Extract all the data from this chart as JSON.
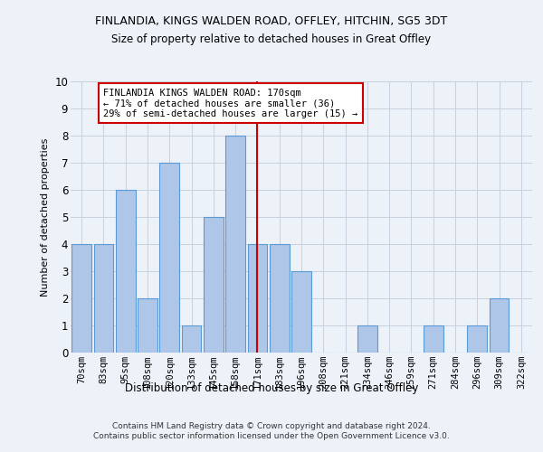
{
  "title1": "FINLANDIA, KINGS WALDEN ROAD, OFFLEY, HITCHIN, SG5 3DT",
  "title2": "Size of property relative to detached houses in Great Offley",
  "xlabel": "Distribution of detached houses by size in Great Offley",
  "ylabel": "Number of detached properties",
  "categories": [
    "70sqm",
    "83sqm",
    "95sqm",
    "108sqm",
    "120sqm",
    "133sqm",
    "145sqm",
    "158sqm",
    "171sqm",
    "183sqm",
    "196sqm",
    "208sqm",
    "221sqm",
    "234sqm",
    "246sqm",
    "259sqm",
    "271sqm",
    "284sqm",
    "296sqm",
    "309sqm",
    "322sqm"
  ],
  "values": [
    4,
    4,
    6,
    2,
    7,
    1,
    5,
    8,
    4,
    4,
    3,
    0,
    0,
    1,
    0,
    0,
    1,
    0,
    1,
    2,
    0
  ],
  "bar_color": "#aec6e8",
  "bar_edge_color": "#5b9bd5",
  "highlight_index": 8,
  "highlight_line_color": "#cc0000",
  "annotation_line1": "FINLANDIA KINGS WALDEN ROAD: 170sqm",
  "annotation_line2": "← 71% of detached houses are smaller (36)",
  "annotation_line3": "29% of semi-detached houses are larger (15) →",
  "annotation_box_color": "#ffffff",
  "annotation_box_edge": "#cc0000",
  "ylim": [
    0,
    10
  ],
  "yticks": [
    0,
    1,
    2,
    3,
    4,
    5,
    6,
    7,
    8,
    9,
    10
  ],
  "footer": "Contains HM Land Registry data © Crown copyright and database right 2024.\nContains public sector information licensed under the Open Government Licence v3.0.",
  "background_color": "#edf2f9",
  "plot_bg_color": "#edf2f9"
}
